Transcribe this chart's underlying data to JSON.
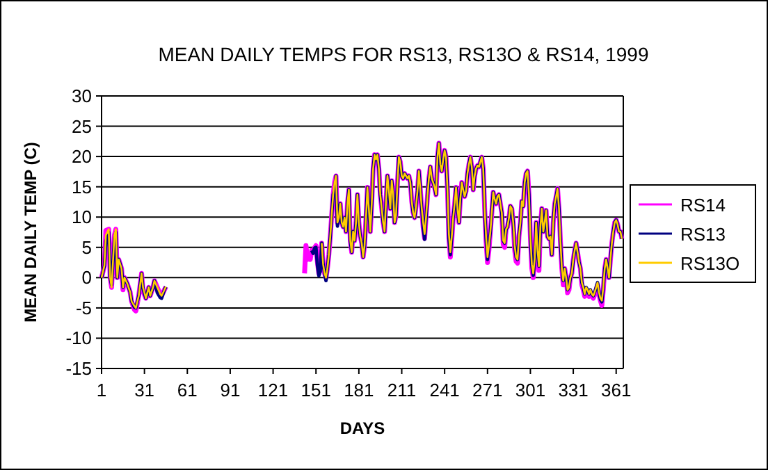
{
  "chart_data": {
    "type": "line",
    "title": "MEAN DAILY TEMPS FOR RS13, RS13O & RS14, 1999",
    "xlabel": "DAYS",
    "ylabel": "MEAN DAILY TEMP (C)",
    "xlim": [
      1,
      366
    ],
    "xticks": [
      1,
      31,
      61,
      91,
      121,
      151,
      181,
      211,
      241,
      271,
      301,
      331,
      361
    ],
    "ylim": [
      -15,
      30
    ],
    "yticks": [
      -15,
      -10,
      -5,
      0,
      5,
      10,
      15,
      20,
      25,
      30
    ],
    "grid": "y",
    "legend": "right",
    "marker": "none",
    "line_style": "solid",
    "series": [
      {
        "name": "RS14",
        "color": "#ff00ff",
        "x": [
          1,
          3,
          4,
          6,
          7,
          8,
          10,
          11,
          12,
          13,
          15,
          16,
          17,
          19,
          21,
          22,
          24,
          25,
          27,
          29,
          30,
          32,
          34,
          35,
          37,
          38,
          40,
          42,
          43,
          45,
          46,
          47,
          143,
          144,
          145,
          146,
          147,
          148,
          149,
          150,
          151,
          152,
          153,
          154,
          155,
          156,
          157,
          158,
          159,
          160,
          161,
          162,
          163,
          164,
          165,
          166,
          167,
          168,
          169,
          170,
          171,
          172,
          173,
          174,
          175,
          176,
          177,
          178,
          179,
          180,
          181,
          182,
          183,
          184,
          185,
          186,
          187,
          188,
          189,
          190,
          191,
          192,
          193,
          194,
          195,
          196,
          197,
          198,
          199,
          200,
          201,
          202,
          203,
          204,
          205,
          206,
          207,
          208,
          209,
          210,
          211,
          212,
          213,
          214,
          215,
          216,
          217,
          218,
          219,
          220,
          221,
          222,
          223,
          224,
          225,
          226,
          227,
          228,
          229,
          230,
          231,
          232,
          233,
          234,
          235,
          236,
          237,
          238,
          239,
          240,
          241,
          242,
          243,
          244,
          245,
          246,
          247,
          248,
          249,
          250,
          251,
          252,
          253,
          254,
          255,
          256,
          257,
          258,
          259,
          260,
          261,
          262,
          263,
          264,
          265,
          266,
          267,
          268,
          269,
          270,
          271,
          272,
          273,
          274,
          275,
          276,
          277,
          278,
          279,
          280,
          281,
          282,
          283,
          284,
          285,
          286,
          287,
          288,
          289,
          290,
          291,
          292,
          293,
          294,
          295,
          296,
          297,
          298,
          299,
          300,
          301,
          302,
          303,
          304,
          305,
          306,
          307,
          308,
          309,
          310,
          311,
          312,
          313,
          314,
          315,
          316,
          317,
          318,
          319,
          320,
          321,
          322,
          323,
          324,
          325,
          326,
          327,
          328,
          329,
          330,
          331,
          332,
          333,
          334,
          335,
          336,
          337,
          338,
          339,
          340,
          341,
          342,
          343,
          344,
          345,
          346,
          347,
          348,
          349,
          350,
          351,
          352,
          353,
          354,
          355,
          356,
          357,
          358,
          359,
          360,
          361,
          362,
          363,
          364,
          365
        ],
        "values": [
          0,
          2,
          7.8,
          8,
          0,
          -1.6,
          7,
          8,
          0,
          3,
          1.5,
          -2,
          0,
          -1,
          -2.4,
          -3.9,
          -5.3,
          -5.5,
          -3,
          0.7,
          -2.2,
          -3.4,
          -1.6,
          -3,
          -1.6,
          -0.5,
          -1.6,
          -2.7,
          -3,
          -2,
          -1.5,
          null,
          0.7,
          5.3,
          3,
          3.8,
          3,
          4.5,
          4.2,
          4.9,
          5.3,
          2.6,
          0.7,
          1.5,
          5.7,
          2.2,
          0.7,
          0,
          1.5,
          3.8,
          6.8,
          10.3,
          13.7,
          15.7,
          16.8,
          9.1,
          9.9,
          12.2,
          9.1,
          8.4,
          9.9,
          7.6,
          12.2,
          14.5,
          6.1,
          4.2,
          7.6,
          6.1,
          9.1,
          13.7,
          9.1,
          6.8,
          5.7,
          3.4,
          5.3,
          9.9,
          14.9,
          11.4,
          7.6,
          12.2,
          18,
          20.3,
          19.5,
          20.3,
          18,
          13.7,
          11.4,
          9.1,
          7.6,
          12.6,
          16.8,
          14.5,
          11.4,
          16,
          13.7,
          9.1,
          10.3,
          15.7,
          19.9,
          19.1,
          16.8,
          16.4,
          17.2,
          16.8,
          16.4,
          16.8,
          15.7,
          12.6,
          10.7,
          9.9,
          11.8,
          14.3,
          17.6,
          14.5,
          11.4,
          8.3,
          6.5,
          9.9,
          13.4,
          16.4,
          18.3,
          16.4,
          15.7,
          14.9,
          13.7,
          19.9,
          22.2,
          18.7,
          17.6,
          19.5,
          21,
          19.9,
          14.5,
          6.5,
          3.4,
          6.2,
          9.9,
          12.2,
          14.9,
          11.4,
          9.1,
          13,
          15.7,
          14.5,
          13.4,
          14.3,
          17.2,
          18.7,
          19.9,
          18.3,
          14.5,
          16.8,
          18,
          18.5,
          18.3,
          19.1,
          19.9,
          18,
          11.4,
          6,
          2.5,
          4.6,
          7.6,
          10.7,
          14.1,
          13,
          12.2,
          13.4,
          13.7,
          12.2,
          10.7,
          5.5,
          5,
          8,
          8.4,
          9.9,
          11.8,
          11.4,
          9.1,
          4.6,
          2.7,
          2.4,
          6.8,
          9.1,
          12.6,
          11.8,
          15.7,
          17.2,
          17.6,
          13.7,
          6.8,
          1.5,
          0,
          3,
          9.1,
          4.5,
          1.2,
          8.4,
          11.4,
          7.6,
          9.1,
          11.1,
          6.8,
          6.4,
          6.8,
          3.8,
          9.1,
          12.2,
          13.4,
          14.7,
          11.4,
          6.1,
          1.5,
          -1.2,
          1.5,
          0,
          -2.5,
          -2,
          0,
          0.7,
          3,
          4.5,
          5.7,
          4.2,
          2.6,
          1.5,
          -1.2,
          -2,
          -3.1,
          -2,
          -2.4,
          -3.1,
          -2.4,
          -3.1,
          -3.4,
          -2.8,
          -2,
          -1.2,
          -2.8,
          -3.8,
          -4.6,
          -2,
          1.5,
          3,
          1.5,
          0,
          3,
          5.7,
          7.6,
          9.1,
          9.5,
          8.8,
          7.6,
          7.6,
          6.4
        ]
      },
      {
        "name": "RS13",
        "color": "#000080",
        "x": [
          1,
          3,
          4,
          6,
          7,
          8,
          10,
          11,
          12,
          13,
          15,
          16,
          17,
          19,
          21,
          22,
          24,
          25,
          27,
          29,
          30,
          32,
          34,
          35,
          37,
          38,
          40,
          42,
          43,
          45,
          46,
          47,
          148,
          149,
          150,
          151,
          152,
          153,
          154,
          155,
          156,
          157,
          158,
          159,
          160,
          161,
          162,
          163,
          164,
          165,
          166,
          167,
          168,
          169,
          170,
          171,
          172,
          173,
          174,
          175,
          176,
          177,
          178,
          179,
          180,
          181,
          182,
          183,
          184,
          185,
          186,
          187,
          188,
          189,
          190,
          191,
          192,
          193,
          194,
          195,
          196,
          197,
          198,
          199,
          200,
          201,
          202,
          203,
          204,
          205,
          206,
          207,
          208,
          209,
          210,
          211,
          212,
          213,
          214,
          215,
          216,
          217,
          218,
          219,
          220,
          221,
          222,
          223,
          224,
          225,
          226,
          227,
          228,
          229,
          230,
          231,
          232,
          233,
          234,
          235,
          236,
          237,
          238,
          239,
          240,
          241,
          242,
          243,
          244,
          245,
          246,
          247,
          248,
          249,
          250,
          251,
          252,
          253,
          254,
          255,
          256,
          257,
          258,
          259,
          260,
          261,
          262,
          263,
          264,
          265,
          266,
          267,
          268,
          269,
          270,
          271,
          272,
          273,
          274,
          275,
          276,
          277,
          278,
          279,
          280,
          281,
          282,
          283,
          284,
          285,
          286,
          287,
          288,
          289,
          290,
          291,
          292,
          293,
          294,
          295,
          296,
          297,
          298,
          299,
          300,
          301,
          302,
          303,
          304,
          305,
          306,
          307,
          308,
          309,
          310,
          311,
          312,
          313,
          314,
          315,
          316,
          317,
          318,
          319,
          320,
          321,
          322,
          323,
          324,
          325,
          326,
          327,
          328,
          329,
          330,
          331,
          332,
          333,
          334,
          335,
          336,
          337,
          338,
          339,
          340,
          341,
          342,
          343,
          344,
          345,
          346,
          347,
          348,
          349,
          350,
          351,
          352,
          353,
          354,
          355,
          356,
          357,
          358,
          359,
          360,
          361,
          362,
          363,
          364,
          365
        ],
        "values": [
          0,
          2,
          6,
          7.5,
          0,
          -1.2,
          6.5,
          7.5,
          0,
          3,
          1.5,
          -1.6,
          0,
          -1,
          -2.4,
          -3.9,
          -4.9,
          -5,
          -3,
          0.7,
          -1.8,
          -3.4,
          -1.6,
          -3,
          -1.6,
          -0.5,
          -2.5,
          -3.3,
          -3.4,
          -2,
          -1.5,
          null,
          4.5,
          4,
          4.9,
          5,
          2,
          0.3,
          1,
          5.7,
          2.2,
          0.7,
          -0.5,
          1.5,
          3.8,
          6.8,
          10.3,
          13.7,
          14.5,
          16.8,
          8.5,
          9.9,
          12.2,
          9.1,
          8.4,
          9.9,
          7.6,
          12.2,
          14.5,
          6.1,
          4.2,
          7.6,
          6.1,
          9.1,
          13.7,
          9.1,
          6.8,
          5.7,
          3.4,
          5.3,
          9.9,
          14.9,
          11.4,
          7.6,
          12.2,
          18,
          20.3,
          19.5,
          20.3,
          18,
          13.7,
          11.4,
          9.1,
          7.6,
          12.6,
          16.8,
          14.5,
          11.4,
          16,
          13.7,
          9.1,
          10.3,
          15.7,
          19.9,
          19.1,
          16.8,
          16.4,
          17.2,
          16.8,
          16.4,
          16.8,
          15.7,
          12.6,
          10.7,
          9.9,
          11.8,
          14.3,
          17.6,
          14.5,
          11.4,
          8.2,
          6.3,
          9.9,
          13.4,
          16.4,
          18.3,
          16.4,
          15.7,
          14.9,
          13.7,
          19.9,
          22.2,
          18.7,
          17.6,
          19.5,
          21,
          19.9,
          14.5,
          6.5,
          3.8,
          6.8,
          9.9,
          12.2,
          14.9,
          11.4,
          9.1,
          13,
          15.7,
          14.5,
          13.4,
          14.3,
          17.2,
          18.7,
          19.9,
          18.3,
          14.5,
          16.8,
          18,
          18.5,
          18.3,
          19.1,
          19.9,
          18,
          11.4,
          6.4,
          3,
          5.3,
          7.6,
          10.7,
          14.1,
          13,
          12.2,
          13.4,
          13.7,
          12.2,
          10.7,
          6.1,
          5.7,
          8,
          8.4,
          9.9,
          11.8,
          11.4,
          9.1,
          5.3,
          3.4,
          3,
          6.8,
          9.1,
          12.6,
          11.8,
          15.7,
          17.2,
          17.6,
          13.7,
          6.8,
          2,
          0.4,
          3,
          9.1,
          4.5,
          1.9,
          8.4,
          11.4,
          7.6,
          9.1,
          11.1,
          6.8,
          6.4,
          6.8,
          3.8,
          9.1,
          12.2,
          13.4,
          14.7,
          11.4,
          6.1,
          1.5,
          -0.5,
          1.5,
          0,
          -2,
          -1.6,
          0,
          0.7,
          3,
          4.5,
          5.7,
          4.2,
          2.6,
          1.5,
          -0.8,
          -1.6,
          -2.7,
          -1.6,
          -2,
          -2.7,
          -2,
          -2.7,
          -3,
          -2.4,
          -1.6,
          -0.8,
          -2.4,
          -3.6,
          -4,
          -1.6,
          1.5,
          3,
          1.5,
          0,
          3,
          5.7,
          7.6,
          9.1,
          9.5,
          8.8,
          7.6,
          7.6,
          6.4
        ]
      },
      {
        "name": "RS13O",
        "color": "#ffcc00",
        "x": [
          1,
          3,
          4,
          6,
          7,
          8,
          10,
          11,
          12,
          13,
          15,
          16,
          17,
          19,
          21,
          22,
          24,
          25,
          27,
          29,
          30,
          32,
          34,
          35,
          37,
          38,
          40,
          42,
          43,
          45,
          46,
          47,
          155,
          156,
          157,
          158,
          159,
          160,
          161,
          162,
          163,
          164,
          165,
          166,
          167,
          168,
          169,
          170,
          171,
          172,
          173,
          174,
          175,
          176,
          177,
          178,
          179,
          180,
          181,
          182,
          183,
          184,
          185,
          186,
          187,
          188,
          189,
          190,
          191,
          192,
          193,
          194,
          195,
          196,
          197,
          198,
          199,
          200,
          201,
          202,
          203,
          204,
          205,
          206,
          207,
          208,
          209,
          210,
          211,
          212,
          213,
          214,
          215,
          216,
          217,
          218,
          219,
          220,
          221,
          222,
          223,
          224,
          225,
          226,
          227,
          228,
          229,
          230,
          231,
          232,
          233,
          234,
          235,
          236,
          237,
          238,
          239,
          240,
          241,
          242,
          243,
          244,
          245,
          246,
          247,
          248,
          249,
          250,
          251,
          252,
          253,
          254,
          255,
          256,
          257,
          258,
          259,
          260,
          261,
          262,
          263,
          264,
          265,
          266,
          267,
          268,
          269,
          270,
          271,
          272,
          273,
          274,
          275,
          276,
          277,
          278,
          279,
          280,
          281,
          282,
          283,
          284,
          285,
          286,
          287,
          288,
          289,
          290,
          291,
          292,
          293,
          294,
          295,
          296,
          297,
          298,
          299,
          300,
          301,
          302,
          303,
          304,
          305,
          306,
          307,
          308,
          309,
          310,
          311,
          312,
          313,
          314,
          315,
          316,
          317,
          318,
          319,
          320,
          321,
          322,
          323,
          324,
          325,
          326,
          327,
          328,
          329,
          330,
          331,
          332,
          333,
          334,
          335,
          336,
          337,
          338,
          339,
          340,
          341,
          342,
          343,
          344,
          345,
          346,
          347,
          348,
          349,
          350,
          351,
          352,
          353,
          354,
          355,
          356,
          357,
          358,
          359,
          360,
          361,
          362,
          363,
          364,
          365
        ],
        "values": [
          0,
          2,
          7,
          8,
          0,
          -1.6,
          7,
          8,
          0,
          3,
          1.5,
          -1.6,
          0,
          -1,
          -2.4,
          -3.9,
          -4.7,
          -5,
          -3,
          0.7,
          -1.6,
          -3.4,
          -1.6,
          -3,
          -1.6,
          -0.5,
          -1.6,
          -2.7,
          -3,
          -2,
          -1.5,
          null,
          5.7,
          2.2,
          0.7,
          0,
          1.5,
          3.8,
          6.8,
          10.3,
          13.7,
          15.7,
          16.8,
          9.1,
          9.9,
          12.2,
          9.1,
          8.4,
          9.9,
          7.6,
          12.2,
          14.5,
          6.1,
          4.2,
          7.6,
          6.1,
          9.1,
          13.7,
          9.1,
          6.8,
          5.7,
          3.4,
          5.3,
          9.9,
          14.9,
          11.4,
          7.6,
          12.2,
          18,
          20.3,
          19.5,
          20.3,
          18,
          13.7,
          11.4,
          9.1,
          7.6,
          12.6,
          16.8,
          14.5,
          11.4,
          16,
          13.7,
          9.1,
          10.3,
          15.7,
          19.9,
          19.1,
          16.8,
          16.4,
          17.2,
          16.8,
          16.4,
          16.8,
          15.7,
          12.6,
          10.7,
          9.9,
          11.8,
          14.3,
          17.6,
          14.5,
          11.4,
          9.1,
          7.2,
          9.9,
          13.4,
          16.4,
          18.3,
          16.4,
          15.7,
          14.9,
          13.7,
          19.9,
          22.2,
          18.7,
          17.6,
          19.5,
          21,
          19.9,
          14.5,
          7.2,
          4.2,
          6.8,
          9.9,
          12.2,
          14.9,
          11.4,
          9.1,
          13,
          15.7,
          14.5,
          13.4,
          14.3,
          17.2,
          18.7,
          19.9,
          18.3,
          14.5,
          16.8,
          18,
          18.5,
          18.3,
          19.1,
          19.9,
          18,
          11.4,
          6.8,
          3.4,
          5.3,
          7.6,
          10.7,
          14.1,
          13,
          12.2,
          13.4,
          13.7,
          12.2,
          10.7,
          6.1,
          5.7,
          8,
          8.4,
          9.9,
          11.8,
          11.4,
          9.1,
          5.3,
          3.4,
          3,
          6.8,
          9.1,
          12.6,
          11.8,
          15.7,
          17.2,
          17.6,
          13.7,
          6.8,
          2.2,
          0.7,
          3,
          9.1,
          4.5,
          1.9,
          8.4,
          11.4,
          7.6,
          9.1,
          11.1,
          6.8,
          6.4,
          6.8,
          3.8,
          9.1,
          12.2,
          13.4,
          14.7,
          11.4,
          6.1,
          1.5,
          -0.5,
          1.5,
          0,
          -2,
          -1.6,
          0,
          0.7,
          3,
          4.5,
          5.7,
          4.2,
          2.6,
          1.5,
          -0.8,
          -1.6,
          -2.7,
          -1.6,
          -2,
          -2.7,
          -2,
          -2.7,
          -3,
          -2.4,
          -1.6,
          -0.8,
          -2.4,
          -3.4,
          -3.8,
          -1.6,
          1.5,
          3,
          1.5,
          0,
          3,
          5.7,
          7.6,
          9.1,
          9.5,
          8.8,
          7.6,
          7.6,
          6.4
        ]
      }
    ]
  }
}
